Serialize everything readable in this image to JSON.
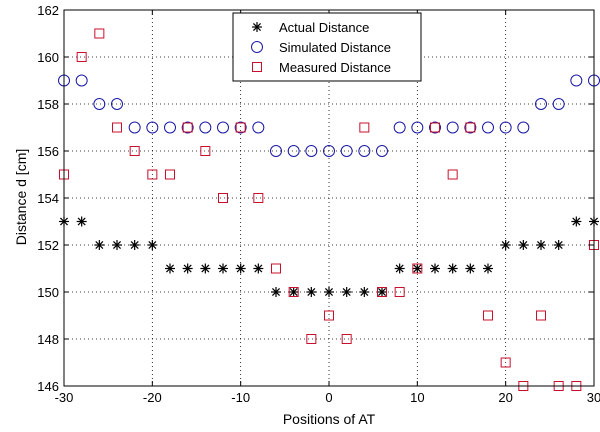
{
  "chart_data": {
    "type": "scatter",
    "xlabel": "Positions of AT",
    "ylabel": "Distance d [cm]",
    "xlim": [
      -30,
      30
    ],
    "ylim": [
      146,
      162
    ],
    "xticks": [
      -30,
      -20,
      -10,
      0,
      10,
      20,
      30
    ],
    "yticks": [
      146,
      148,
      150,
      152,
      154,
      156,
      158,
      160,
      162
    ],
    "grid": true,
    "grid_style": "dotted",
    "legend_position": "top-center",
    "series": [
      {
        "name": "Actual Distance",
        "marker": "asterisk",
        "color": "#000000",
        "x": [
          -30,
          -28,
          -26,
          -24,
          -22,
          -20,
          -18,
          -16,
          -14,
          -12,
          -10,
          -8,
          -6,
          -4,
          -2,
          0,
          2,
          4,
          6,
          8,
          10,
          12,
          14,
          16,
          18,
          20,
          22,
          24,
          26,
          28,
          30
        ],
        "y": [
          153,
          153,
          152,
          152,
          152,
          152,
          151,
          151,
          151,
          151,
          151,
          151,
          150,
          150,
          150,
          150,
          150,
          150,
          150,
          151,
          151,
          151,
          151,
          151,
          151,
          152,
          152,
          152,
          152,
          153,
          153
        ]
      },
      {
        "name": "Simulated Distance",
        "marker": "circle",
        "color": "#1a1aa6",
        "x": [
          -30,
          -28,
          -26,
          -24,
          -22,
          -20,
          -18,
          -16,
          -14,
          -12,
          -10,
          -8,
          -6,
          -4,
          -2,
          0,
          2,
          4,
          6,
          8,
          10,
          12,
          14,
          16,
          18,
          20,
          22,
          24,
          26,
          28,
          30
        ],
        "y": [
          159,
          159,
          158,
          158,
          157,
          157,
          157,
          157,
          157,
          157,
          157,
          157,
          156,
          156,
          156,
          156,
          156,
          156,
          156,
          157,
          157,
          157,
          157,
          157,
          157,
          157,
          157,
          158,
          158,
          159,
          159
        ]
      },
      {
        "name": "Measured Distance",
        "marker": "square",
        "color": "#c8102e",
        "x": [
          -30,
          -28,
          -26,
          -24,
          -22,
          -20,
          -18,
          -16,
          -14,
          -12,
          -10,
          -8,
          -6,
          -4,
          -2,
          0,
          2,
          4,
          6,
          8,
          10,
          12,
          14,
          16,
          18,
          20,
          22,
          24,
          26,
          28,
          30
        ],
        "y": [
          155,
          160,
          161,
          157,
          156,
          155,
          155,
          157,
          156,
          154,
          157,
          154,
          151,
          150,
          148,
          149,
          148,
          157,
          150,
          150,
          151,
          157,
          155,
          157,
          149,
          147,
          146,
          149,
          146,
          146,
          152
        ]
      }
    ]
  }
}
